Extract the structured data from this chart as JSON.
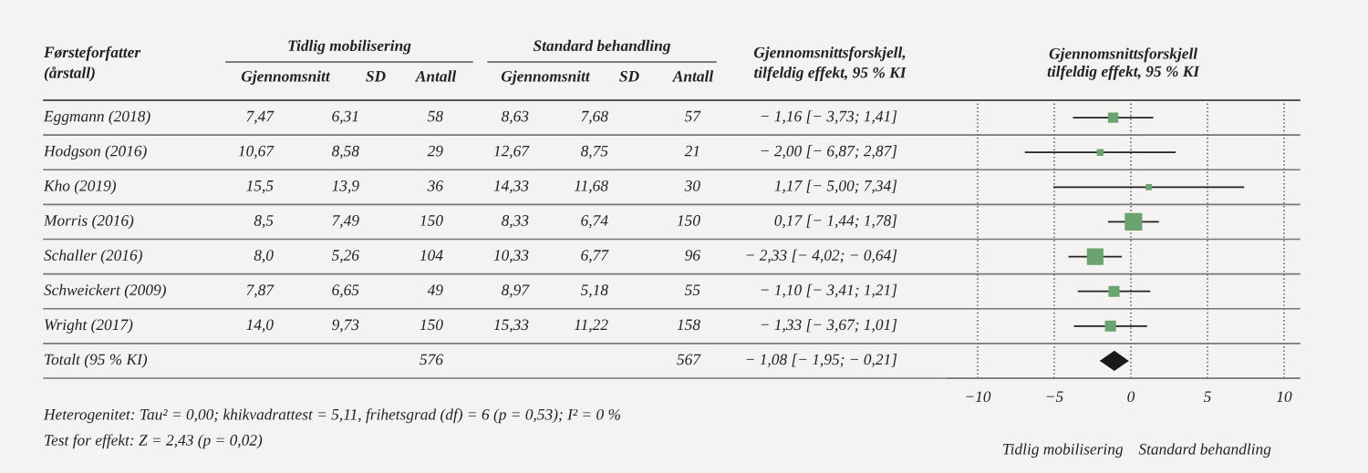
{
  "chart_data": [
    {
      "type": "other",
      "title": "Førsteforfatter\n(årstall)",
      "categories": [
        "Gjennomsnitt",
        "SD",
        "Antall",
        "Gjennomsnitt",
        "SD",
        "Antall",
        "Gjennomsnittsforskjell,\ntilfeldig effekt, 95 % KI"
      ],
      "y_categories": [
        "Eggmann (2018)",
        "Hodgson (2016)",
        "Kho (2019)",
        "Morris (2016)",
        "Schaller (2016)",
        "Schweickert (2009)",
        "Wright (2017)",
        "Totalt (95 % KI)"
      ],
      "cell_labels": [
        [
          "7,47",
          "6,31",
          "58",
          "8,63",
          "7,68",
          "57",
          "− 1,16 [− 3,73; 1,41]"
        ],
        [
          "10,67",
          "8,58",
          "29",
          "12,67",
          "8,75",
          "21",
          "− 2,00 [− 6,87; 2,87]"
        ],
        [
          "15,5",
          "13,9",
          "36",
          "14,33",
          "11,68",
          "30",
          "1,17 [− 5,00; 7,34]"
        ],
        [
          "8,5",
          "7,49",
          "150",
          "8,33",
          "6,74",
          "150",
          "0,17 [− 1,44; 1,78]"
        ],
        [
          "8,0",
          "5,26",
          "104",
          "10,33",
          "6,77",
          "96",
          "− 2,33 [− 4,02; − 0,64]"
        ],
        [
          "7,87",
          "6,65",
          "49",
          "8,97",
          "5,18",
          "55",
          "− 1,10 [− 3,41; 1,21]"
        ],
        [
          "14,0",
          "9,73",
          "150",
          "15,33",
          "11,22",
          "158",
          "− 1,33 [− 3,67; 1,01]"
        ],
        [
          null,
          null,
          "576",
          null,
          null,
          "567",
          "− 1,08 [− 1,95; − 0,21]"
        ]
      ],
      "annotations": [
        "Tidlig mobilisering",
        "Standard behandling",
        "Heterogenitet: Tau² = 0,00; khikvadrattest = 5,11, frihetsgrad (df) = 6 (p = 0,53); I² = 0 %",
        "Test for effekt: Z = 2,43 (p = 0,02)"
      ]
    },
    {
      "type": "scatter",
      "orientation": "horizontal",
      "title": "Gjennomsnittsforskjell\ntilfeldig effekt, 95 % KI",
      "categories": [
        null,
        null,
        null,
        null,
        null,
        null,
        null,
        null
      ],
      "series": [
        {
          "color": "#6aa36f",
          "marker": "square",
          "values": [
            -1.16,
            -2.0,
            1.17,
            0.17,
            -2.33,
            -1.1,
            -1.33,
            null
          ],
          "errors": [
            [
              -3.73,
              1.41
            ],
            [
              -6.87,
              2.87
            ],
            [
              -5.0,
              7.34
            ],
            [
              -1.44,
              1.78
            ],
            [
              -4.02,
              -0.64
            ],
            [
              -3.41,
              1.21
            ],
            [
              -3.67,
              1.01
            ],
            null
          ],
          "sizes": [
            0.35,
            0.15,
            0.12,
            1,
            0.9,
            0.4,
            0.4,
            null
          ]
        },
        {
          "color": "#1a1a1a",
          "marker": "diamond",
          "values": [
            null,
            null,
            null,
            null,
            null,
            null,
            null,
            -1.08
          ],
          "errors": [
            null,
            null,
            null,
            null,
            null,
            null,
            null,
            [
              -1.95,
              -0.21
            ]
          ]
        }
      ],
      "xlim": [
        -12,
        11
      ],
      "xticks": [
        {
          "value": -10,
          "label": "−10"
        },
        {
          "value": -5,
          "label": "−5"
        },
        0,
        5,
        10
      ],
      "grid": "x",
      "annotations": [
        "Tidlig mobilisering",
        "Standard behandling"
      ]
    }
  ]
}
